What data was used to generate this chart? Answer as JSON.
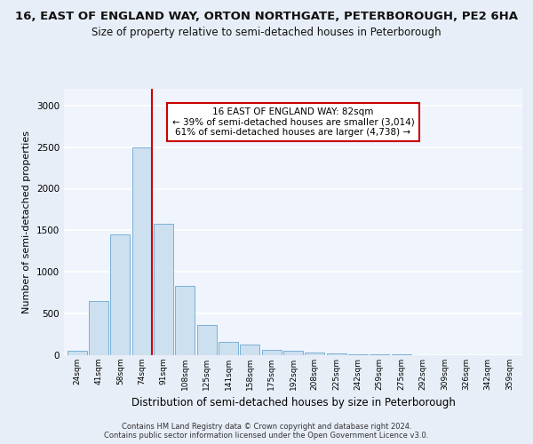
{
  "title_line1": "16, EAST OF ENGLAND WAY, ORTON NORTHGATE, PETERBOROUGH, PE2 6HA",
  "title_line2": "Size of property relative to semi-detached houses in Peterborough",
  "xlabel": "Distribution of semi-detached houses by size in Peterborough",
  "ylabel": "Number of semi-detached properties",
  "footer": "Contains HM Land Registry data © Crown copyright and database right 2024.\nContains public sector information licensed under the Open Government Licence v3.0.",
  "categories": [
    "24sqm",
    "41sqm",
    "58sqm",
    "74sqm",
    "91sqm",
    "108sqm",
    "125sqm",
    "141sqm",
    "158sqm",
    "175sqm",
    "192sqm",
    "208sqm",
    "225sqm",
    "242sqm",
    "259sqm",
    "275sqm",
    "292sqm",
    "309sqm",
    "326sqm",
    "342sqm",
    "359sqm"
  ],
  "values": [
    50,
    650,
    1450,
    2500,
    1580,
    830,
    360,
    165,
    125,
    60,
    55,
    35,
    25,
    15,
    10,
    8,
    5,
    3,
    2,
    2,
    1
  ],
  "bar_color": "#cce0f0",
  "bar_edge_color": "#7ab0d4",
  "property_line_color": "#cc0000",
  "annotation_text": "16 EAST OF ENGLAND WAY: 82sqm\n← 39% of semi-detached houses are smaller (3,014)\n61% of semi-detached houses are larger (4,738) →",
  "annotation_box_color": "#ffffff",
  "annotation_box_edge": "#cc0000",
  "ylim": [
    0,
    3200
  ],
  "yticks": [
    0,
    500,
    1000,
    1500,
    2000,
    2500,
    3000
  ],
  "bg_color": "#e8eef8",
  "plot_bg_color": "#f0f4fc",
  "grid_color": "#ffffff",
  "title1_fontsize": 9.5,
  "title2_fontsize": 8.5,
  "xlabel_fontsize": 8.5,
  "ylabel_fontsize": 8
}
